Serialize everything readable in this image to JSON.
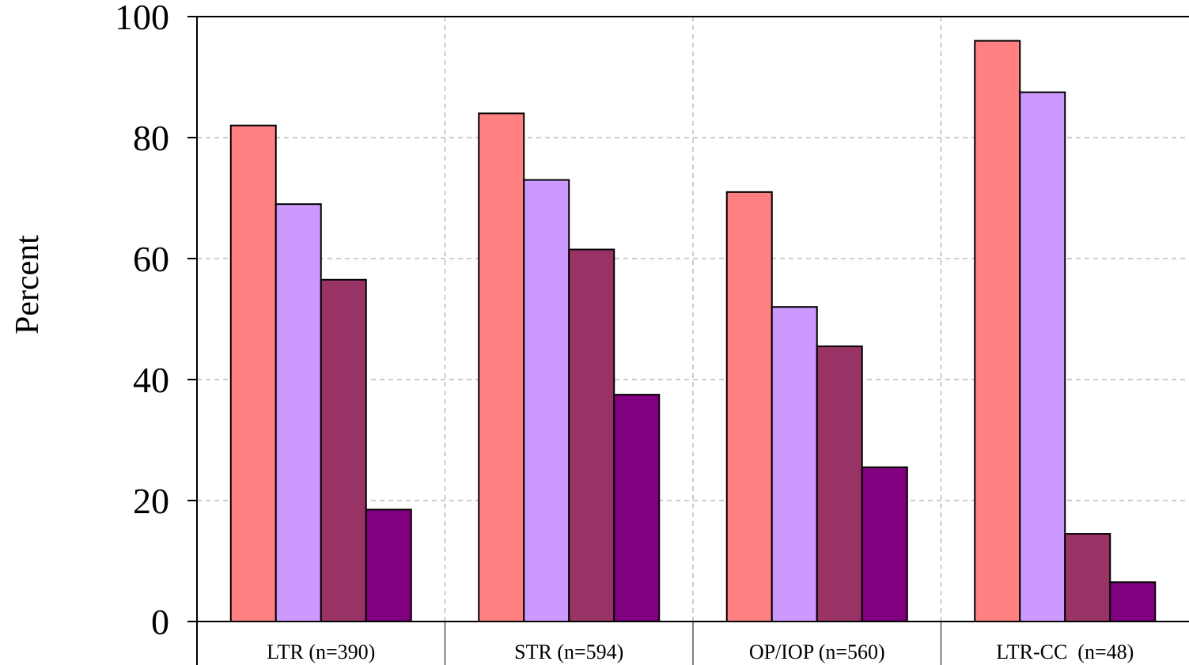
{
  "chart_data": {
    "type": "bar",
    "title": "",
    "xlabel": "",
    "ylabel": "Percent",
    "ylim": [
      0,
      100
    ],
    "yticks": [
      0,
      20,
      40,
      60,
      80,
      100
    ],
    "grid": true,
    "legend": "none",
    "categories": [
      "LTR (n=390)",
      "STR (n=594)",
      "OP/IOP (n=560)",
      "LTR-CC  (n=48)"
    ],
    "series": [
      {
        "color": "#ff8080",
        "values": [
          82,
          84,
          71,
          96
        ]
      },
      {
        "color": "#cc99ff",
        "values": [
          69,
          73,
          52,
          87.5
        ]
      },
      {
        "color": "#993366",
        "values": [
          56.5,
          61.5,
          45.5,
          14.5
        ]
      },
      {
        "color": "#800080",
        "values": [
          18.5,
          37.5,
          25.5,
          6.5
        ]
      }
    ]
  }
}
